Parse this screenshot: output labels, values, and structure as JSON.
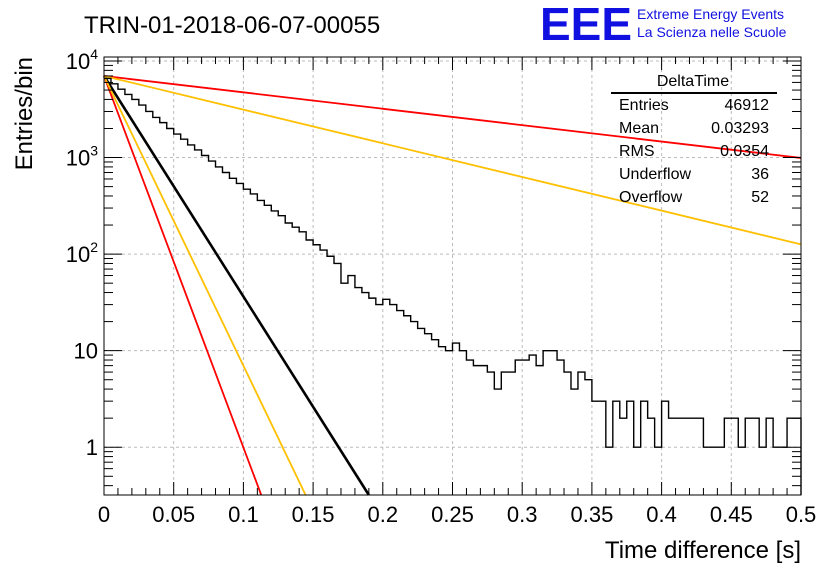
{
  "title": "TRIN-01-2018-06-07-00055",
  "logo": {
    "letters": "EEE",
    "line1": "Extreme Energy Events",
    "line2": "La Scienza nelle Scuole",
    "color": "#1010e0"
  },
  "stats": {
    "name": "DeltaTime",
    "rows": [
      {
        "label": "Entries",
        "value": "46912"
      },
      {
        "label": "Mean",
        "value": "0.03293"
      },
      {
        "label": "RMS",
        "value": "0.0354"
      },
      {
        "label": "Underflow",
        "value": "36"
      },
      {
        "label": "Overflow",
        "value": "52"
      }
    ]
  },
  "chart_data": {
    "type": "line",
    "xlabel": "Time difference [s]",
    "ylabel": "Entries/bin",
    "xlim": [
      0,
      0.5
    ],
    "ylim": [
      0.32,
      11000
    ],
    "yscale": "log",
    "grid": true,
    "x_ticks": [
      "0",
      "0.05",
      "0.1",
      "0.15",
      "0.2",
      "0.25",
      "0.3",
      "0.35",
      "0.4",
      "0.45",
      "0.5"
    ],
    "y_ticks": [
      {
        "value": 1,
        "label": "1",
        "sup": ""
      },
      {
        "value": 10,
        "label": "10",
        "sup": ""
      },
      {
        "value": 100,
        "label": "10",
        "sup": "2"
      },
      {
        "value": 1000,
        "label": "10",
        "sup": "3"
      },
      {
        "value": 10000,
        "label": "10",
        "sup": "4"
      }
    ],
    "histogram": {
      "bin_width": 0.005,
      "counts": [
        6600,
        5800,
        5100,
        4500,
        4000,
        3500,
        3000,
        2600,
        2300,
        2000,
        1750,
        1550,
        1350,
        1200,
        1050,
        920,
        800,
        700,
        610,
        540,
        470,
        420,
        360,
        320,
        280,
        250,
        210,
        190,
        170,
        140,
        125,
        110,
        95,
        80,
        50,
        60,
        45,
        40,
        35,
        30,
        34,
        30,
        26,
        23,
        20,
        17,
        15,
        13,
        11,
        10,
        12,
        10,
        8,
        7,
        7,
        6,
        4,
        6,
        6,
        8,
        8,
        9,
        7,
        10,
        10,
        8,
        6,
        4,
        6,
        5,
        3,
        3,
        1,
        3,
        2,
        3,
        1,
        3,
        2,
        1,
        3,
        2,
        2,
        2,
        2,
        2,
        1,
        1,
        1,
        2,
        2,
        1,
        2,
        2,
        1,
        2,
        1,
        1,
        2,
        2
      ]
    },
    "fit_lines": [
      {
        "color": "#000000",
        "y0": 7000,
        "slope": -52.6
      },
      {
        "color": "#ff0000",
        "y0": 7000,
        "slope": -88.6
      },
      {
        "color": "#ffc000",
        "y0": 7000,
        "slope": -69.1
      },
      {
        "color": "#ff0000",
        "y0": 7000,
        "slope": -3.91
      },
      {
        "color": "#ffc000",
        "y0": 7000,
        "slope": -8.03
      }
    ]
  }
}
